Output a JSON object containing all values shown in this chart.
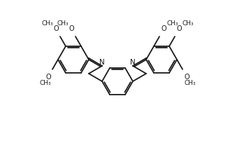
{
  "bg_color": "#ffffff",
  "line_color": "#1a1a1a",
  "line_width": 1.3,
  "font_size": 7.0,
  "font_color": "#1a1a1a",
  "ome_labels": [
    "OCH₃",
    "OCH₃",
    "OCH₃"
  ]
}
